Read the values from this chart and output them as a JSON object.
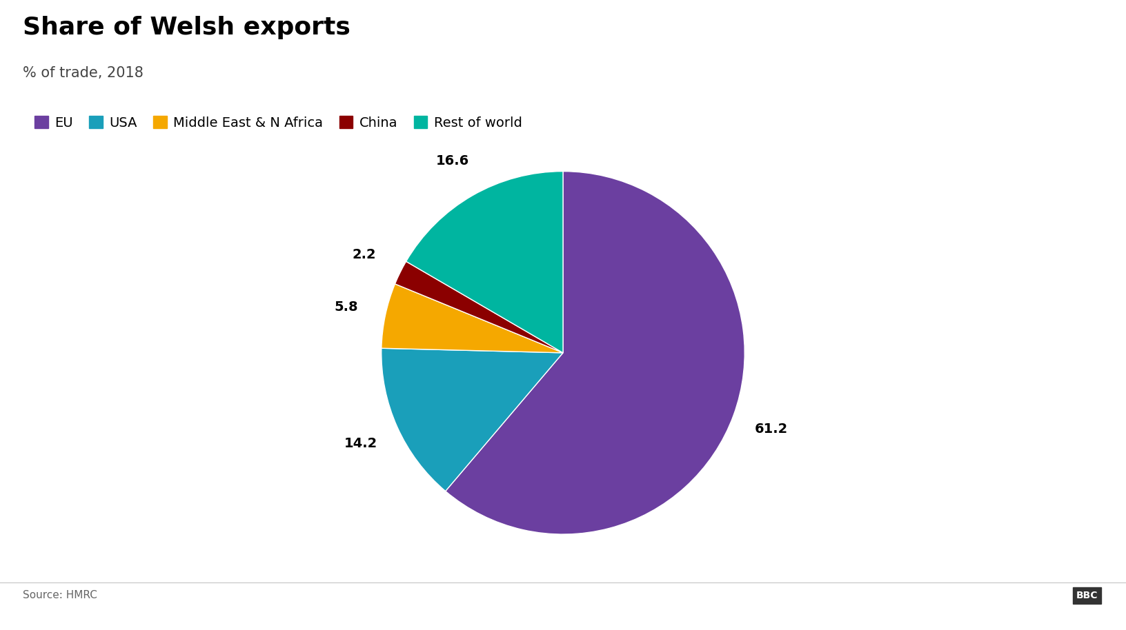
{
  "title": "Share of Welsh exports",
  "subtitle": "% of trade, 2018",
  "source": "Source: HMRC",
  "labels": [
    "EU",
    "USA",
    "Middle East & N Africa",
    "China",
    "Rest of world"
  ],
  "values": [
    61.2,
    14.2,
    5.8,
    2.2,
    16.6
  ],
  "colors": [
    "#6b3fa0",
    "#1a9fba",
    "#f5a800",
    "#8b0000",
    "#00b5a0"
  ],
  "label_values": [
    "61.2",
    "14.2",
    "5.8",
    "2.2",
    "16.6"
  ],
  "background_color": "#ffffff",
  "title_fontsize": 26,
  "subtitle_fontsize": 15,
  "legend_fontsize": 14,
  "label_fontsize": 14
}
